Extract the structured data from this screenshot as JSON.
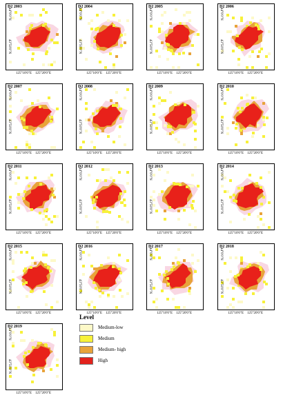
{
  "panels": [
    {
      "title": "D2 2003"
    },
    {
      "title": "D2 2004"
    },
    {
      "title": "D2 2005"
    },
    {
      "title": "D2 2006"
    },
    {
      "title": "D2 2007"
    },
    {
      "title": "D2 2008"
    },
    {
      "title": "D2 2009"
    },
    {
      "title": "D2 2010"
    },
    {
      "title": "D2 2011"
    },
    {
      "title": "D2 2012"
    },
    {
      "title": "D2 2013"
    },
    {
      "title": "D2 2014"
    },
    {
      "title": "D2 2015"
    },
    {
      "title": "D2 2016"
    },
    {
      "title": "D2 2017"
    },
    {
      "title": "D2 2018"
    },
    {
      "title": "D2 2019"
    }
  ],
  "axis": {
    "lat_top": "44°0'0\"N",
    "lat_bottom": "43°50'0\"N",
    "lon_left": "125°10'0\"E",
    "lon_right": "125°20'0\"E"
  },
  "legend": {
    "title": "Level",
    "items": [
      {
        "label": "Medium-low",
        "color": "#fdf9c8"
      },
      {
        "label": "Medium",
        "color": "#f7f13a"
      },
      {
        "label": "Medium- high",
        "color": "#e8a33a"
      },
      {
        "label": "High",
        "color": "#e3221c"
      }
    ]
  },
  "colors": {
    "halo": "#f7c9d9",
    "high": "#e8211a"
  }
}
